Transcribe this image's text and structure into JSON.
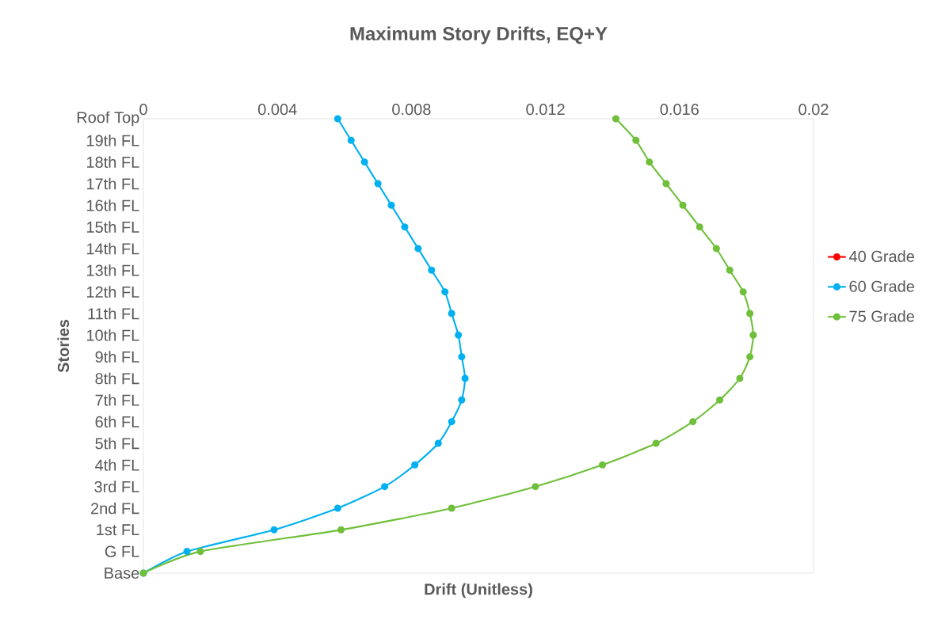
{
  "chart_data": {
    "type": "line",
    "orientation": "horizontal",
    "title": "Maximum Story Drifts, EQ+Y",
    "xlabel": "Drift (Unitless)",
    "ylabel": "Stories",
    "categories": [
      "Roof Top",
      "19th FL",
      "18th FL",
      "17th FL",
      "16th FL",
      "15th FL",
      "14th FL",
      "13th FL",
      "12th FL",
      "11th FL",
      "10th FL",
      "9th FL",
      "8th FL",
      "7th FL",
      "6th FL",
      "5th FL",
      "4th FL",
      "3rd FL",
      "2nd FL",
      "1st FL",
      "G FL",
      "Base"
    ],
    "series": [
      {
        "name": "40 Grade",
        "color": "#ff0000",
        "values": [
          null,
          null,
          null,
          null,
          null,
          null,
          null,
          null,
          null,
          null,
          null,
          null,
          null,
          null,
          null,
          null,
          null,
          null,
          null,
          null,
          null,
          null
        ]
      },
      {
        "name": "60 Grade",
        "color": "#00b0f0",
        "values": [
          0.0058,
          0.0062,
          0.0066,
          0.007,
          0.0074,
          0.0078,
          0.0082,
          0.0086,
          0.009,
          0.0092,
          0.0094,
          0.0095,
          0.0096,
          0.0095,
          0.0092,
          0.0088,
          0.0081,
          0.0072,
          0.0058,
          0.0039,
          0.0013,
          0
        ]
      },
      {
        "name": "75 Grade",
        "color": "#6fbf3a",
        "values": [
          0.0141,
          0.0147,
          0.0151,
          0.0156,
          0.0161,
          0.0166,
          0.0171,
          0.0175,
          0.0179,
          0.0181,
          0.0182,
          0.0181,
          0.0178,
          0.0172,
          0.0164,
          0.0153,
          0.0137,
          0.0117,
          0.0092,
          0.0059,
          0.0017,
          0
        ]
      }
    ],
    "xlim": [
      0,
      0.02
    ],
    "xticks": [
      0,
      0.004,
      0.008,
      0.012,
      0.016,
      0.02
    ],
    "legend": "right",
    "marker": "circle",
    "line_style": "solid"
  }
}
